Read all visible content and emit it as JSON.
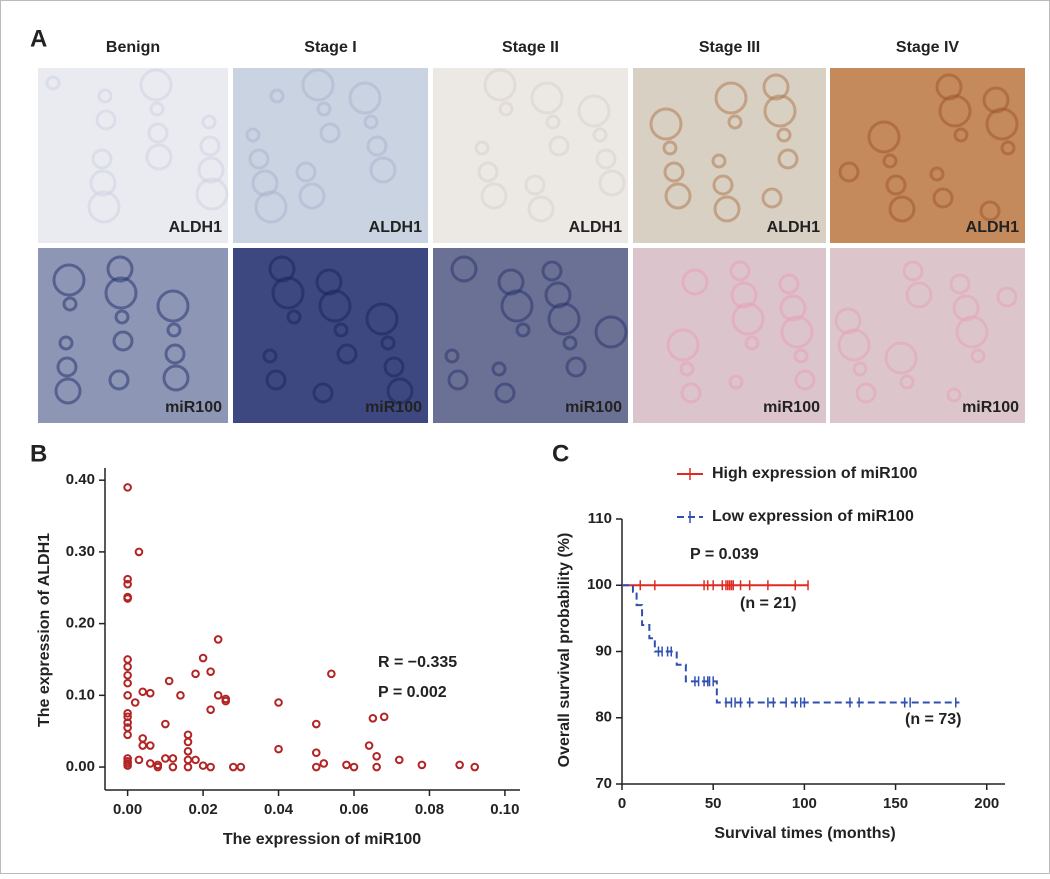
{
  "panel_a": {
    "label": "A",
    "columns": [
      "Benign",
      "Stage I",
      "Stage II",
      "Stage III",
      "Stage IV"
    ],
    "markers": [
      "ALDH1",
      "miR100"
    ]
  },
  "chart_data": [
    {
      "type": "scatter",
      "panel": "B",
      "x_label": "The expression of miR100",
      "y_label": "The expression of ALDH1",
      "annotations": [
        "R = −0.335",
        "P = 0.002"
      ],
      "color": "#b32424",
      "x": [
        0,
        0,
        0,
        0,
        0,
        0,
        0,
        0,
        0,
        0,
        0,
        0,
        0,
        0,
        0,
        0,
        0,
        0,
        0,
        0.002,
        0.003,
        0.003,
        0.004,
        0.004,
        0.004,
        0.006,
        0.006,
        0.006,
        0.008,
        0.008,
        0.01,
        0.01,
        0.011,
        0.012,
        0.012,
        0.014,
        0.016,
        0.016,
        0.016,
        0.016,
        0.016,
        0.018,
        0.018,
        0.02,
        0.02,
        0.022,
        0.022,
        0.022,
        0.024,
        0.024,
        0.026,
        0.026,
        0.028,
        0.03,
        0.04,
        0.04,
        0.05,
        0.05,
        0.05,
        0.052,
        0.054,
        0.058,
        0.06,
        0.064,
        0.065,
        0.066,
        0.066,
        0.068,
        0.072,
        0.078,
        0.088,
        0.092
      ],
      "y": [
        0.39,
        0.262,
        0.255,
        0.237,
        0.235,
        0.15,
        0.14,
        0.128,
        0.117,
        0.1,
        0.075,
        0.07,
        0.062,
        0.055,
        0.045,
        0.012,
        0.008,
        0.005,
        0.002,
        0.09,
        0.3,
        0.01,
        0.105,
        0.04,
        0.03,
        0.103,
        0.03,
        0.005,
        0.003,
        0,
        0.06,
        0.012,
        0.12,
        0.012,
        0,
        0.1,
        0.045,
        0.035,
        0.022,
        0,
        0.01,
        0.13,
        0.01,
        0.152,
        0.002,
        0.133,
        0.08,
        0,
        0.178,
        0.1,
        0.095,
        0.092,
        0,
        0,
        0.09,
        0.025,
        0.06,
        0.02,
        0,
        0.005,
        0.13,
        0.003,
        0,
        0.03,
        0.068,
        0.015,
        0,
        0.07,
        0.01,
        0.003,
        0.003,
        0
      ],
      "xlim": [
        -0.006,
        0.104
      ],
      "ylim": [
        -0.032,
        0.417
      ],
      "xticks": [
        {
          "value": 0,
          "label": "0.00"
        },
        {
          "value": 0.02,
          "label": "0.02"
        },
        {
          "value": 0.04,
          "label": "0.04"
        },
        {
          "value": 0.06,
          "label": "0.06"
        },
        {
          "value": 0.08,
          "label": "0.08"
        },
        {
          "value": 0.1,
          "label": "0.10"
        }
      ],
      "yticks": [
        {
          "value": 0,
          "label": "0.00"
        },
        {
          "value": 0.1,
          "label": "0.10"
        },
        {
          "value": 0.2,
          "label": "0.20"
        },
        {
          "value": 0.3,
          "label": "0.30"
        },
        {
          "value": 0.4,
          "label": "0.40"
        }
      ]
    },
    {
      "type": "line",
      "panel": "C",
      "x_label": "Survival times (months)",
      "y_label": "Overall survival probability (%)",
      "annotations": [
        "P = 0.039",
        "(n = 21)",
        "(n = 73)"
      ],
      "xlim": [
        0,
        210
      ],
      "ylim": [
        70,
        110
      ],
      "xticks": [
        0,
        50,
        100,
        150,
        200
      ],
      "yticks": [
        70,
        80,
        90,
        100,
        110
      ],
      "series": [
        {
          "name": "High expression of miR100",
          "color": "#e02a20",
          "dashed": false,
          "x": [
            0,
            102
          ],
          "y": [
            100,
            100
          ],
          "censor": {
            "x": [
              10,
              18,
              45,
              47,
              50,
              55,
              57,
              58,
              59,
              60,
              61,
              65,
              70,
              80,
              95,
              102
            ],
            "y": [
              100,
              100,
              100,
              100,
              100,
              100,
              100,
              100,
              100,
              100,
              100,
              100,
              100,
              100,
              100,
              100
            ]
          }
        },
        {
          "name": "Low expression of miR100",
          "color": "#3050b0",
          "dashed": true,
          "x": [
            0,
            6,
            6,
            8,
            8,
            11,
            11,
            15,
            15,
            18,
            18,
            30,
            30,
            35,
            35,
            52,
            52,
            185
          ],
          "y": [
            100,
            100,
            99,
            99,
            97,
            97,
            94,
            94,
            92,
            92,
            90,
            90,
            88,
            88,
            85.5,
            85.5,
            82.3,
            82.3
          ],
          "censor": {
            "x": [
              20,
              22,
              25,
              27,
              40,
              42,
              45,
              47,
              48,
              50,
              57,
              60,
              62,
              65,
              70,
              80,
              83,
              90,
              95,
              98,
              100,
              125,
              130,
              155,
              158,
              183
            ],
            "y": [
              90,
              90,
              90,
              90,
              85.5,
              85.5,
              85.5,
              85.5,
              85.5,
              85.5,
              82.3,
              82.3,
              82.3,
              82.3,
              82.3,
              82.3,
              82.3,
              82.3,
              82.3,
              82.3,
              82.3,
              82.3,
              82.3,
              82.3,
              82.3,
              82.3
            ]
          }
        }
      ]
    }
  ]
}
